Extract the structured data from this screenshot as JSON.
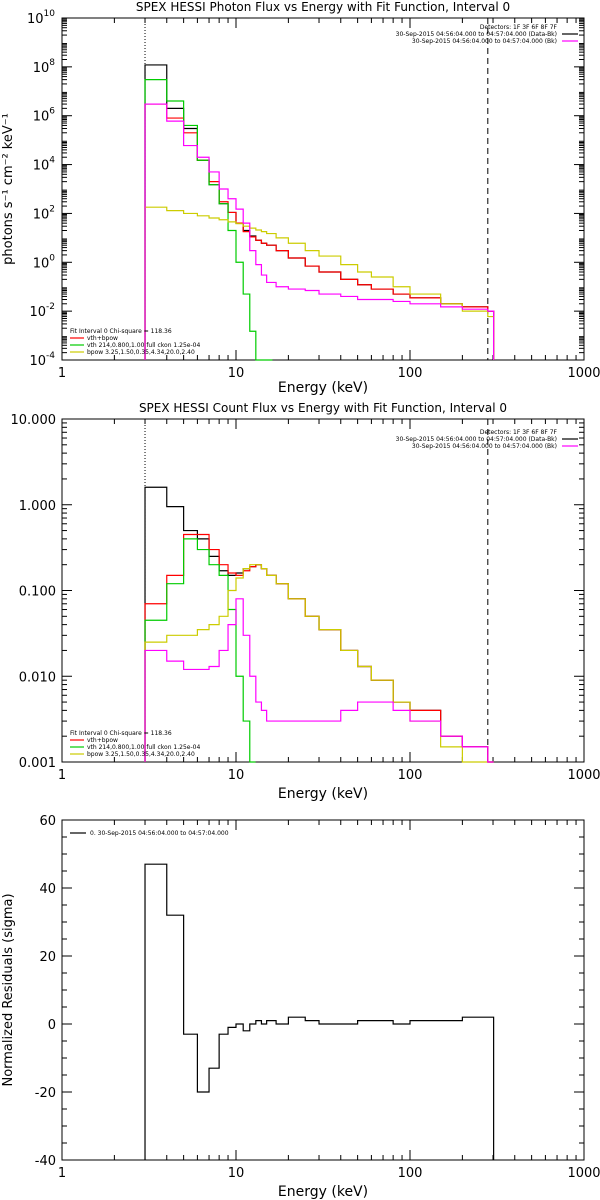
{
  "chart_data": [
    {
      "type": "line",
      "title": "SPEX HESSI Photon Flux vs Energy with Fit Function, Interval 0",
      "xlabel": "Energy (keV)",
      "ylabel": "photons s⁻¹ cm⁻² keV⁻¹",
      "xscale": "log",
      "yscale": "log",
      "xlim": [
        1,
        1000
      ],
      "ylim": [
        0.0001,
        10000000000
      ],
      "x_ticks": [
        {
          "value": 1,
          "label": "1"
        },
        {
          "value": 10,
          "label": "10"
        },
        {
          "value": 100,
          "label": "100"
        },
        {
          "value": 1000,
          "label": "1000"
        }
      ],
      "y_ticks": [
        {
          "value": 0.0001,
          "base": "10",
          "exp": "-4"
        },
        {
          "value": 0.01,
          "base": "10",
          "exp": "-2"
        },
        {
          "value": 1,
          "base": "10",
          "exp": "0"
        },
        {
          "value": 100,
          "base": "10",
          "exp": "2"
        },
        {
          "value": 10000,
          "base": "10",
          "exp": "4"
        },
        {
          "value": 1000000,
          "base": "10",
          "exp": "6"
        },
        {
          "value": 100000000,
          "base": "10",
          "exp": "8"
        },
        {
          "value": 10000000000,
          "base": "10",
          "exp": "10"
        }
      ],
      "vlines": [
        {
          "x": 3,
          "style": "dotted"
        },
        {
          "x": 280,
          "style": "dashed"
        }
      ],
      "legend_top": {
        "lines": [
          "Detectors: 1F 3F 6F 8F 7F",
          "30-Sep-2015 04:56:04.000 to 04:57:04.000 (Data-Bk)",
          "30-Sep-2015 04:56:04.000 to 04:57:04.000 (Bk)"
        ],
        "colors": [
          "",
          "#000000",
          "#ff00ff"
        ]
      },
      "legend_bottom": {
        "lines": [
          "Fit Interval  0   Chi-square = 118.36",
          "vth+bpow",
          "vth 214,0.800,1.00  full ckon 1.25e-04",
          "bpow 3.25,1.50,0.35,4.34,20.0,2.40"
        ],
        "colors": [
          "",
          "#ff0000",
          "#00cc00",
          "#cccc00"
        ]
      },
      "series": [
        {
          "name": "Data-Bk",
          "color": "#000000",
          "x": [
            3,
            3.5,
            4,
            4.5,
            5,
            5.5,
            6,
            6.5,
            7,
            7.5,
            8,
            9,
            10,
            11,
            12,
            13,
            14,
            15,
            17,
            20,
            25,
            30,
            40,
            50,
            60,
            80,
            100,
            150,
            200,
            280
          ],
          "values": [
            120000000.0,
            120000000.0,
            2000000.0,
            2000000.0,
            300000.0,
            300000.0,
            15000.0,
            15000.0,
            1500,
            1500,
            250,
            110,
            40,
            20,
            12,
            8,
            6,
            5,
            3,
            1.5,
            0.7,
            0.4,
            0.2,
            0.12,
            0.08,
            0.05,
            0.035,
            0.02,
            0.015,
            0.01
          ]
        },
        {
          "name": "vth+bpow",
          "color": "#ff0000",
          "x": [
            3,
            3.5,
            4,
            4.5,
            5,
            5.5,
            6,
            6.5,
            7,
            7.5,
            8,
            9,
            10,
            11,
            12,
            13,
            14,
            15,
            17,
            20,
            25,
            30,
            40,
            50,
            60,
            80,
            100,
            150,
            200,
            280
          ],
          "values": [
            3000000.0,
            3000000.0,
            800000.0,
            800000.0,
            200000.0,
            200000.0,
            15000.0,
            15000.0,
            2000,
            2000,
            300,
            110,
            40,
            18,
            11,
            8,
            6,
            5,
            3,
            1.5,
            0.7,
            0.4,
            0.2,
            0.12,
            0.08,
            0.05,
            0.035,
            0.02,
            0.015,
            0.01
          ]
        },
        {
          "name": "vth 214,0.800,1.00 full ckon 1.25e-04",
          "color": "#00cc00",
          "x": [
            3,
            3.5,
            4,
            4.5,
            5,
            5.5,
            6,
            6.5,
            7,
            7.5,
            8,
            9,
            10,
            11,
            12,
            13,
            14,
            15
          ],
          "values": [
            30000000.0,
            30000000.0,
            4000000.0,
            4000000.0,
            400000.0,
            400000.0,
            15000.0,
            15000.0,
            1500,
            1500,
            250,
            20,
            1,
            0.05,
            0.0015,
            0.0001,
            0.0001,
            0.0001
          ]
        },
        {
          "name": "bpow 3.25,1.50,0.35,4.34,20.0,2.40",
          "color": "#cccc00",
          "x": [
            3,
            4,
            5,
            6,
            7,
            8,
            9,
            10,
            11,
            12,
            13,
            14,
            15,
            17,
            20,
            25,
            30,
            40,
            50,
            60,
            80,
            100,
            150,
            200,
            280
          ],
          "values": [
            180,
            130,
            100,
            80,
            65,
            55,
            45,
            38,
            30,
            25,
            21,
            18,
            15,
            10,
            6,
            3,
            1.8,
            0.8,
            0.4,
            0.25,
            0.1,
            0.05,
            0.02,
            0.01,
            0.006
          ]
        },
        {
          "name": "Bk",
          "color": "#ff00ff",
          "x": [
            3,
            3.5,
            4,
            4.5,
            5,
            5.5,
            6,
            6.5,
            7,
            7.5,
            8,
            9,
            10,
            11,
            12,
            13,
            14,
            15,
            17,
            20,
            25,
            30,
            40,
            50,
            60,
            80,
            100,
            150,
            200,
            280
          ],
          "values": [
            3000000.0,
            3000000.0,
            600000.0,
            600000.0,
            60000.0,
            60000.0,
            20000.0,
            20000.0,
            5000,
            5000,
            1000,
            400,
            150,
            40,
            3,
            0.8,
            0.3,
            0.15,
            0.1,
            0.08,
            0.07,
            0.05,
            0.04,
            0.03,
            0.03,
            0.025,
            0.02,
            0.015,
            0.012,
            0.01
          ]
        }
      ]
    },
    {
      "type": "line",
      "title": "SPEX HESSI Count Flux vs Energy with Fit Function, Interval 0",
      "xlabel": "Energy (keV)",
      "ylabel": "",
      "xscale": "log",
      "yscale": "log",
      "xlim": [
        1,
        1000
      ],
      "ylim": [
        0.001,
        10
      ],
      "x_ticks": [
        {
          "value": 1,
          "label": "1"
        },
        {
          "value": 10,
          "label": "10"
        },
        {
          "value": 100,
          "label": "100"
        },
        {
          "value": 1000,
          "label": "1000"
        }
      ],
      "y_ticks": [
        {
          "value": 0.001,
          "label": "0.001"
        },
        {
          "value": 0.01,
          "label": "0.010"
        },
        {
          "value": 0.1,
          "label": "0.100"
        },
        {
          "value": 1,
          "label": "1.000"
        },
        {
          "value": 10,
          "label": "10.000"
        }
      ],
      "vlines": [
        {
          "x": 3,
          "style": "dotted"
        },
        {
          "x": 280,
          "style": "dashed"
        }
      ],
      "legend_top": {
        "lines": [
          "Detectors: 1F 3F 6F 8F 7F",
          "30-Sep-2015 04:56:04.000 to 04:57:04.000 (Data-Bk)",
          "30-Sep-2015 04:56:04.000 to 04:57:04.000 (Bk)"
        ],
        "colors": [
          "",
          "#000000",
          "#ff00ff"
        ]
      },
      "legend_bottom": {
        "lines": [
          "Fit Interval  0   Chi-square = 118.36",
          "vth+bpow",
          "vth 214,0.800,1.00  full ckon 1.25e-04",
          "bpow 3.25,1.50,0.35,4.34,20.0,2.40"
        ],
        "colors": [
          "",
          "#ff0000",
          "#00cc00",
          "#cccc00"
        ]
      },
      "series": [
        {
          "name": "Data-Bk",
          "color": "#000000",
          "x": [
            3,
            4,
            5,
            6,
            7,
            8,
            9,
            10,
            11,
            12,
            13,
            14,
            15,
            17,
            20,
            25,
            30,
            40,
            50,
            60,
            80,
            100,
            150,
            200,
            280
          ],
          "values": [
            1.6,
            0.95,
            0.5,
            0.4,
            0.25,
            0.17,
            0.15,
            0.16,
            0.18,
            0.19,
            0.2,
            0.18,
            0.15,
            0.12,
            0.08,
            0.05,
            0.035,
            0.02,
            0.013,
            0.009,
            0.005,
            0.004,
            0.002,
            0.0015,
            0.001
          ]
        },
        {
          "name": "vth+bpow",
          "color": "#ff0000",
          "x": [
            3,
            4,
            5,
            6,
            7,
            8,
            9,
            10,
            11,
            12,
            13,
            14,
            15,
            17,
            20,
            25,
            30,
            40,
            50,
            60,
            80,
            100,
            150,
            200,
            280
          ],
          "values": [
            0.07,
            0.15,
            0.45,
            0.45,
            0.3,
            0.2,
            0.16,
            0.15,
            0.17,
            0.19,
            0.2,
            0.18,
            0.15,
            0.12,
            0.08,
            0.05,
            0.035,
            0.02,
            0.013,
            0.009,
            0.005,
            0.004,
            0.002,
            0.0015,
            0.001
          ]
        },
        {
          "name": "vth 214,0.800,1.00 full ckon 1.25e-04",
          "color": "#00cc00",
          "x": [
            3,
            4,
            5,
            6,
            7,
            8,
            9,
            10,
            11,
            12
          ],
          "values": [
            0.045,
            0.12,
            0.4,
            0.3,
            0.2,
            0.15,
            0.06,
            0.01,
            0.003,
            0.001
          ]
        },
        {
          "name": "bpow 3.25,1.50,0.35,4.34,20.0,2.40",
          "color": "#cccc00",
          "x": [
            3,
            4,
            5,
            6,
            7,
            8,
            9,
            10,
            11,
            12,
            13,
            14,
            15,
            17,
            20,
            25,
            30,
            40,
            50,
            60,
            80,
            100,
            150,
            200,
            280
          ],
          "values": [
            0.025,
            0.03,
            0.03,
            0.035,
            0.04,
            0.05,
            0.1,
            0.14,
            0.18,
            0.2,
            0.2,
            0.18,
            0.15,
            0.12,
            0.08,
            0.05,
            0.035,
            0.02,
            0.013,
            0.009,
            0.005,
            0.003,
            0.0015,
            0.001,
            0.001
          ]
        },
        {
          "name": "Bk",
          "color": "#ff00ff",
          "x": [
            3,
            4,
            5,
            6,
            7,
            8,
            9,
            10,
            11,
            12,
            13,
            14,
            15,
            17,
            20,
            25,
            30,
            40,
            50,
            60,
            80,
            100,
            150,
            200,
            280
          ],
          "values": [
            0.02,
            0.015,
            0.012,
            0.012,
            0.013,
            0.02,
            0.04,
            0.08,
            0.03,
            0.01,
            0.005,
            0.004,
            0.003,
            0.003,
            0.003,
            0.003,
            0.003,
            0.004,
            0.005,
            0.005,
            0.004,
            0.003,
            0.002,
            0.0015,
            0.001
          ]
        }
      ]
    },
    {
      "type": "line",
      "title": "",
      "xlabel": "Energy (keV)",
      "ylabel": "Normalized Residuals (sigma)",
      "xscale": "log",
      "yscale": "linear",
      "xlim": [
        1,
        1000
      ],
      "ylim": [
        -40,
        60
      ],
      "x_ticks": [
        {
          "value": 1,
          "label": "1"
        },
        {
          "value": 10,
          "label": "10"
        },
        {
          "value": 100,
          "label": "100"
        },
        {
          "value": 1000,
          "label": "1000"
        }
      ],
      "y_ticks": [
        {
          "value": -40,
          "label": "-40"
        },
        {
          "value": -20,
          "label": "-20"
        },
        {
          "value": 0,
          "label": "0"
        },
        {
          "value": 20,
          "label": "20"
        },
        {
          "value": 40,
          "label": "40"
        },
        {
          "value": 60,
          "label": "60"
        }
      ],
      "legend_top_left": "0. 30-Sep-2015 04:56:04.000 to 04:57:04.000",
      "series": [
        {
          "name": "0. 30-Sep-2015 04:56:04.000 to 04:57:04.000",
          "color": "#000000",
          "x": [
            3,
            3.5,
            4,
            4.5,
            5,
            5.5,
            6,
            6.5,
            7,
            7.5,
            8,
            9,
            10,
            11,
            12,
            13,
            14,
            15,
            17,
            20,
            25,
            30,
            40,
            50,
            60,
            80,
            100,
            150,
            200,
            280
          ],
          "values": [
            47,
            47,
            32,
            32,
            -3,
            -3,
            -20,
            -20,
            -13,
            -13,
            -3,
            -1,
            0,
            -2,
            0,
            1,
            0,
            1,
            0,
            2,
            1,
            0,
            0,
            1,
            1,
            0,
            1,
            1,
            2,
            2
          ]
        }
      ]
    }
  ]
}
